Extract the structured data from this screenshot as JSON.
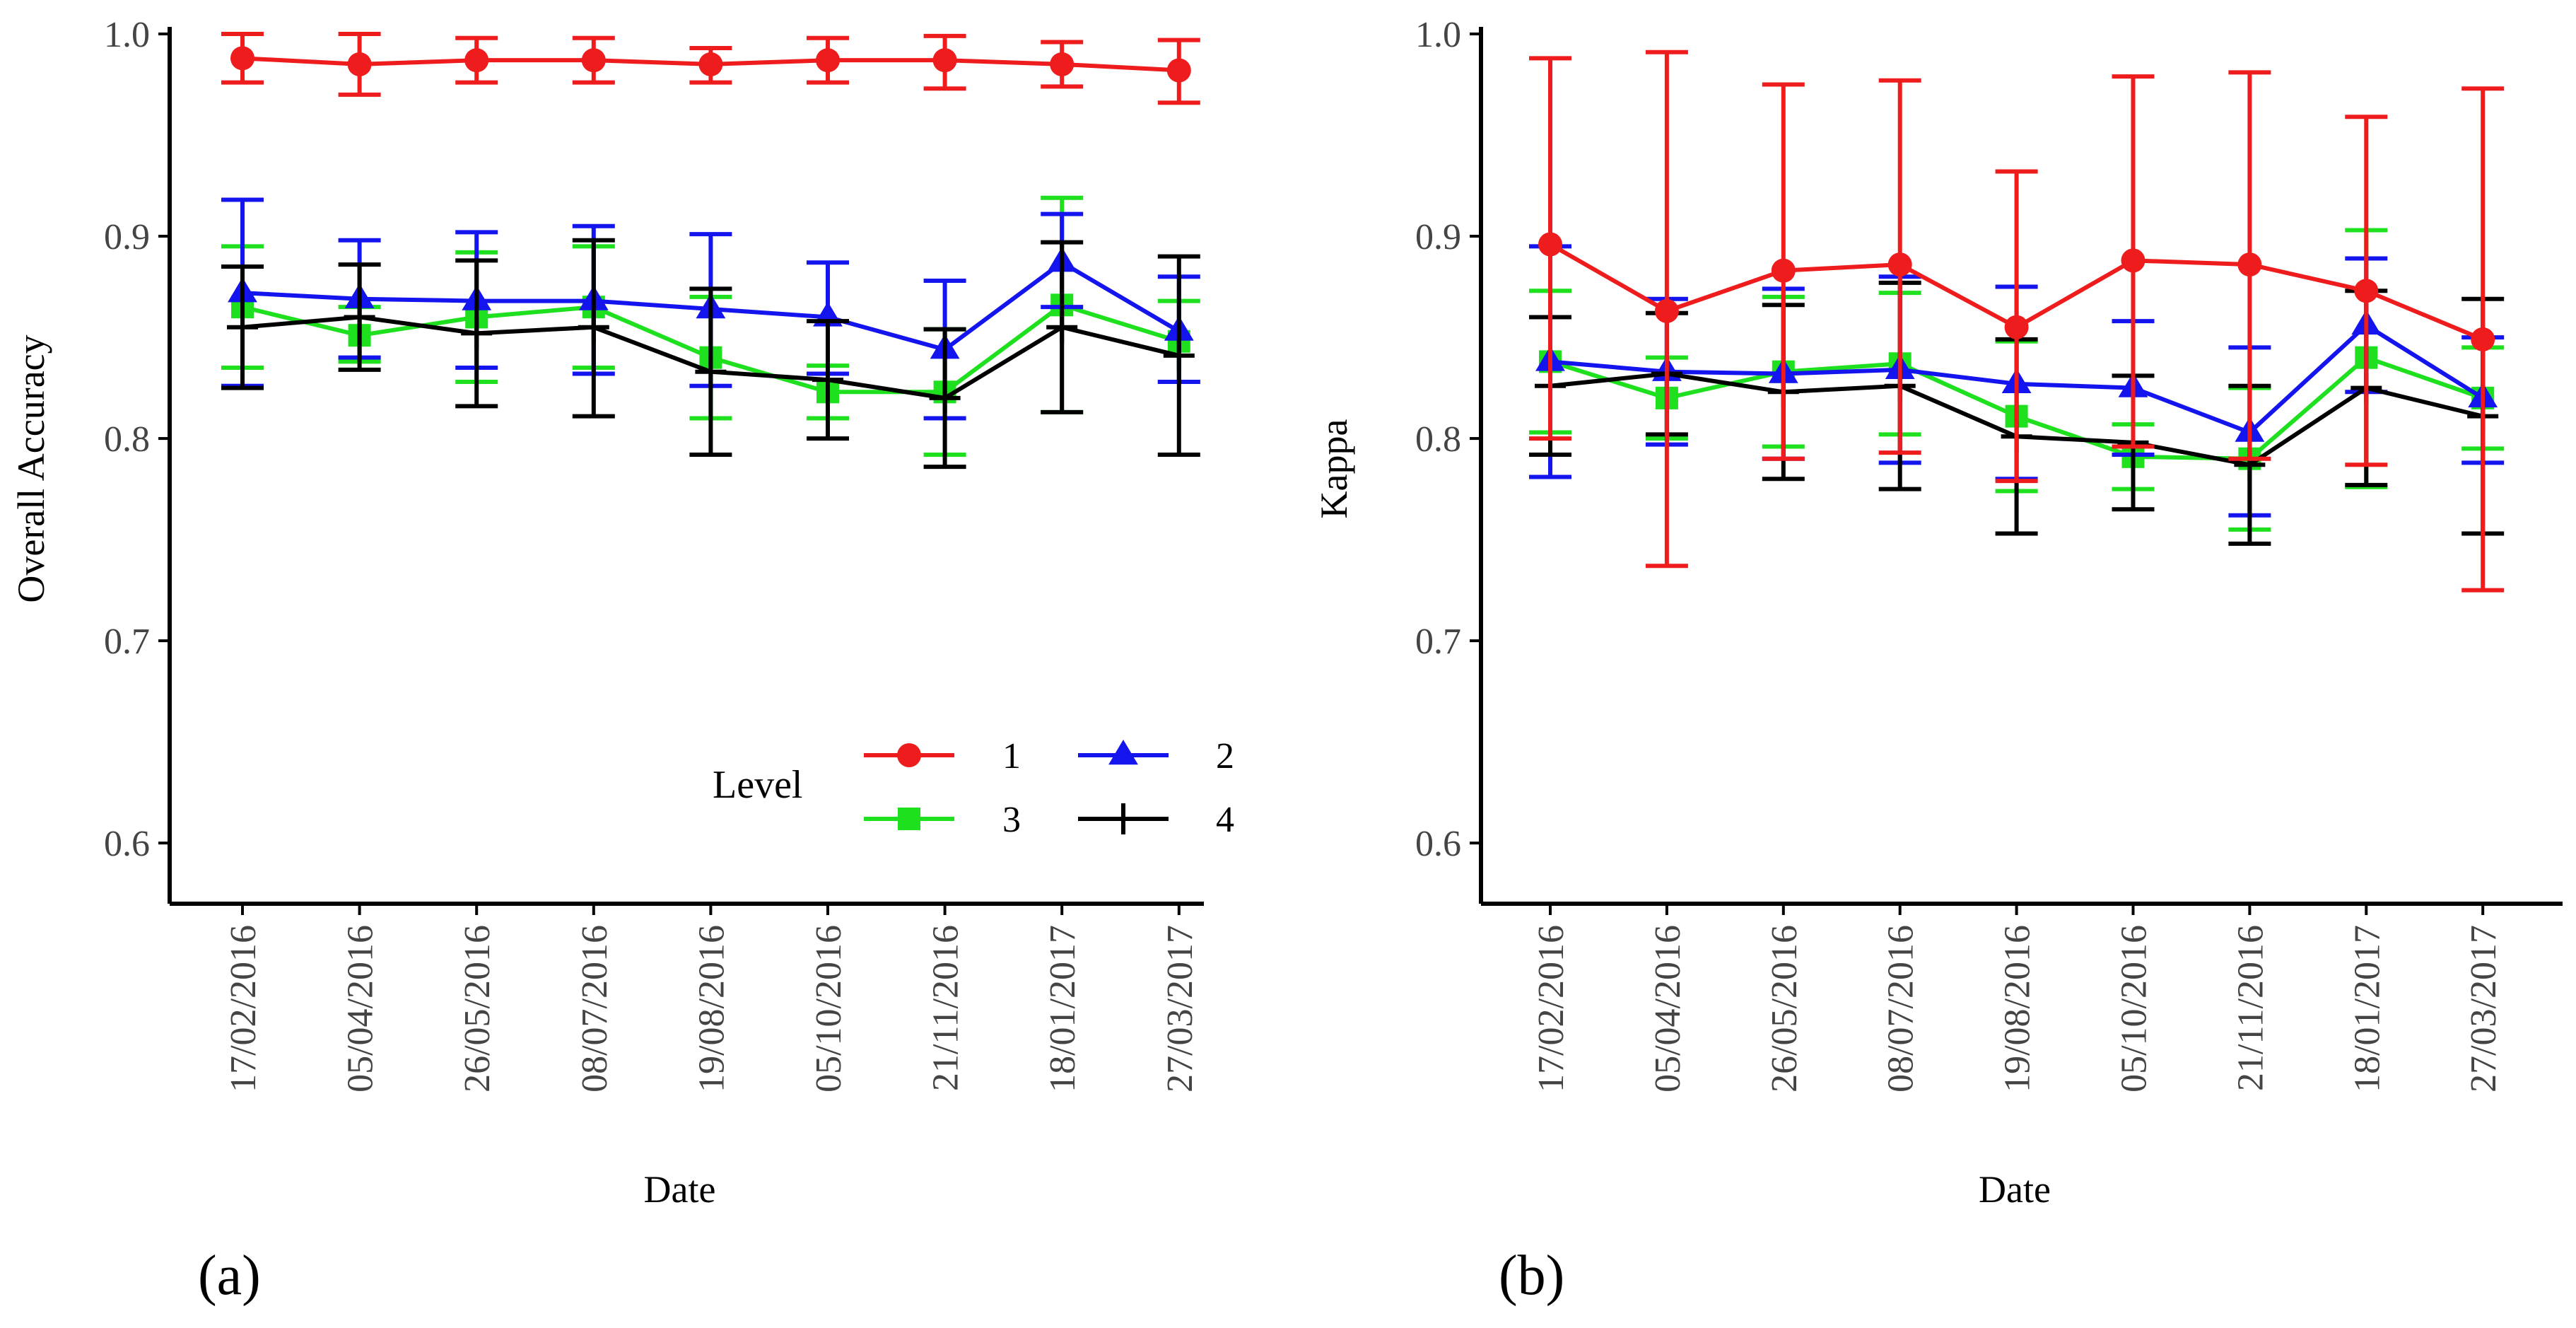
{
  "chart_data": [
    {
      "type": "line",
      "panel_label": "(a)",
      "xlabel": "Date",
      "ylabel": "Overall Accuracy",
      "ylim": [
        0.57,
        1.0
      ],
      "yticks": [
        0.6,
        0.7,
        0.8,
        0.9,
        1.0
      ],
      "ytick_labels": [
        "0.6",
        "0.7",
        "0.8",
        "0.9",
        "1.0"
      ],
      "categories": [
        "17/02/2016",
        "05/04/2016",
        "26/05/2016",
        "08/07/2016",
        "19/08/2016",
        "05/10/2016",
        "21/11/2016",
        "18/01/2017",
        "27/03/2017"
      ],
      "legend": {
        "title": "Level",
        "position": "bottom-right"
      },
      "series": [
        {
          "name": "1",
          "color": "#ee1c1c",
          "marker": "circle",
          "values": [
            0.988,
            0.985,
            0.987,
            0.987,
            0.985,
            0.987,
            0.987,
            0.985,
            0.982
          ],
          "lower": [
            0.976,
            0.97,
            0.976,
            0.976,
            0.976,
            0.976,
            0.973,
            0.974,
            0.966
          ],
          "upper": [
            1.0,
            1.0,
            0.998,
            0.998,
            0.993,
            0.998,
            0.999,
            0.996,
            0.997
          ]
        },
        {
          "name": "2",
          "color": "#1414ee",
          "marker": "triangle",
          "values": [
            0.872,
            0.869,
            0.868,
            0.868,
            0.864,
            0.86,
            0.844,
            0.887,
            0.853
          ],
          "lower": [
            0.826,
            0.84,
            0.835,
            0.832,
            0.826,
            0.832,
            0.81,
            0.865,
            0.828
          ],
          "upper": [
            0.918,
            0.898,
            0.902,
            0.905,
            0.901,
            0.887,
            0.878,
            0.911,
            0.88
          ]
        },
        {
          "name": "3",
          "color": "#1ee01e",
          "marker": "square",
          "values": [
            0.865,
            0.851,
            0.86,
            0.865,
            0.84,
            0.823,
            0.823,
            0.866,
            0.848
          ],
          "lower": [
            0.835,
            0.838,
            0.828,
            0.835,
            0.81,
            0.81,
            0.792,
            0.813,
            0.828
          ],
          "upper": [
            0.895,
            0.865,
            0.892,
            0.895,
            0.87,
            0.836,
            0.854,
            0.919,
            0.868
          ]
        },
        {
          "name": "4",
          "color": "#000000",
          "marker": "plus",
          "values": [
            0.855,
            0.86,
            0.852,
            0.855,
            0.833,
            0.829,
            0.82,
            0.855,
            0.841
          ],
          "lower": [
            0.825,
            0.834,
            0.816,
            0.811,
            0.792,
            0.8,
            0.786,
            0.813,
            0.792
          ],
          "upper": [
            0.885,
            0.886,
            0.888,
            0.898,
            0.874,
            0.858,
            0.854,
            0.897,
            0.89
          ]
        }
      ]
    },
    {
      "type": "line",
      "panel_label": "(b)",
      "xlabel": "Date",
      "ylabel": "Kappa",
      "ylim": [
        0.57,
        1.0
      ],
      "yticks": [
        0.6,
        0.7,
        0.8,
        0.9,
        1.0
      ],
      "ytick_labels": [
        "0.6",
        "0.7",
        "0.8",
        "0.9",
        "1.0"
      ],
      "categories": [
        "17/02/2016",
        "05/04/2016",
        "26/05/2016",
        "08/07/2016",
        "19/08/2016",
        "05/10/2016",
        "21/11/2016",
        "18/01/2017",
        "27/03/2017"
      ],
      "series": [
        {
          "name": "1",
          "color": "#ee1c1c",
          "marker": "circle",
          "values": [
            0.896,
            0.863,
            0.883,
            0.886,
            0.855,
            0.888,
            0.886,
            0.873,
            0.849
          ],
          "lower": [
            0.8,
            0.737,
            0.79,
            0.793,
            0.779,
            0.796,
            0.79,
            0.787,
            0.725
          ],
          "upper": [
            0.988,
            0.991,
            0.975,
            0.977,
            0.932,
            0.979,
            0.981,
            0.959,
            0.973
          ]
        },
        {
          "name": "2",
          "color": "#1414ee",
          "marker": "triangle",
          "values": [
            0.838,
            0.833,
            0.832,
            0.834,
            0.827,
            0.825,
            0.803,
            0.856,
            0.82
          ],
          "lower": [
            0.781,
            0.797,
            0.79,
            0.788,
            0.78,
            0.792,
            0.762,
            0.823,
            0.788
          ],
          "upper": [
            0.895,
            0.869,
            0.874,
            0.88,
            0.875,
            0.858,
            0.845,
            0.889,
            0.85
          ]
        },
        {
          "name": "3",
          "color": "#1ee01e",
          "marker": "square",
          "values": [
            0.838,
            0.82,
            0.833,
            0.837,
            0.811,
            0.791,
            0.79,
            0.84,
            0.82
          ],
          "lower": [
            0.803,
            0.8,
            0.796,
            0.802,
            0.774,
            0.775,
            0.755,
            0.776,
            0.795
          ],
          "upper": [
            0.873,
            0.84,
            0.87,
            0.872,
            0.848,
            0.807,
            0.825,
            0.903,
            0.845
          ]
        },
        {
          "name": "4",
          "color": "#000000",
          "marker": "plus",
          "values": [
            0.826,
            0.832,
            0.823,
            0.826,
            0.801,
            0.798,
            0.787,
            0.825,
            0.811
          ],
          "lower": [
            0.792,
            0.802,
            0.78,
            0.775,
            0.753,
            0.765,
            0.748,
            0.777,
            0.753
          ],
          "upper": [
            0.86,
            0.862,
            0.866,
            0.877,
            0.849,
            0.831,
            0.826,
            0.873,
            0.869
          ]
        }
      ]
    }
  ]
}
